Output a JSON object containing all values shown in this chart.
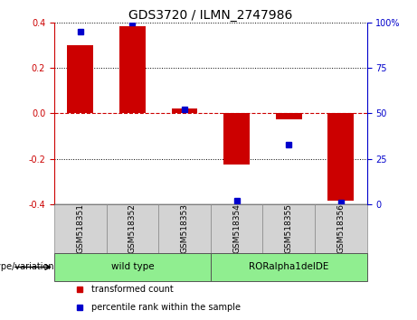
{
  "title": "GDS3720 / ILMN_2747986",
  "samples": [
    "GSM518351",
    "GSM518352",
    "GSM518353",
    "GSM518354",
    "GSM518355",
    "GSM518356"
  ],
  "red_bars": [
    0.3,
    0.385,
    0.02,
    -0.225,
    -0.025,
    -0.385
  ],
  "blue_dots_pct": [
    95,
    100,
    52,
    2,
    33,
    1
  ],
  "ylim_left": [
    -0.4,
    0.4
  ],
  "ylim_right": [
    0,
    100
  ],
  "yticks_left": [
    -0.4,
    -0.2,
    0.0,
    0.2,
    0.4
  ],
  "yticks_right": [
    0,
    25,
    50,
    75,
    100
  ],
  "yticklabels_right": [
    "0",
    "25",
    "50",
    "75",
    "100%"
  ],
  "bar_color": "#CC0000",
  "dot_color": "#0000CC",
  "zero_line_color": "#CC0000",
  "title_fontsize": 10,
  "tick_fontsize": 7,
  "bar_width": 0.5,
  "genotype_label": "genotype/variation",
  "group_defs": [
    {
      "indices": [
        0,
        1,
        2
      ],
      "label": "wild type"
    },
    {
      "indices": [
        3,
        4,
        5
      ],
      "label": "RORalpha1delDE"
    }
  ],
  "group_color": "#90EE90",
  "sample_box_color": "#D3D3D3",
  "legend_items": [
    {
      "color": "#CC0000",
      "label": "transformed count"
    },
    {
      "color": "#0000CC",
      "label": "percentile rank within the sample"
    }
  ]
}
